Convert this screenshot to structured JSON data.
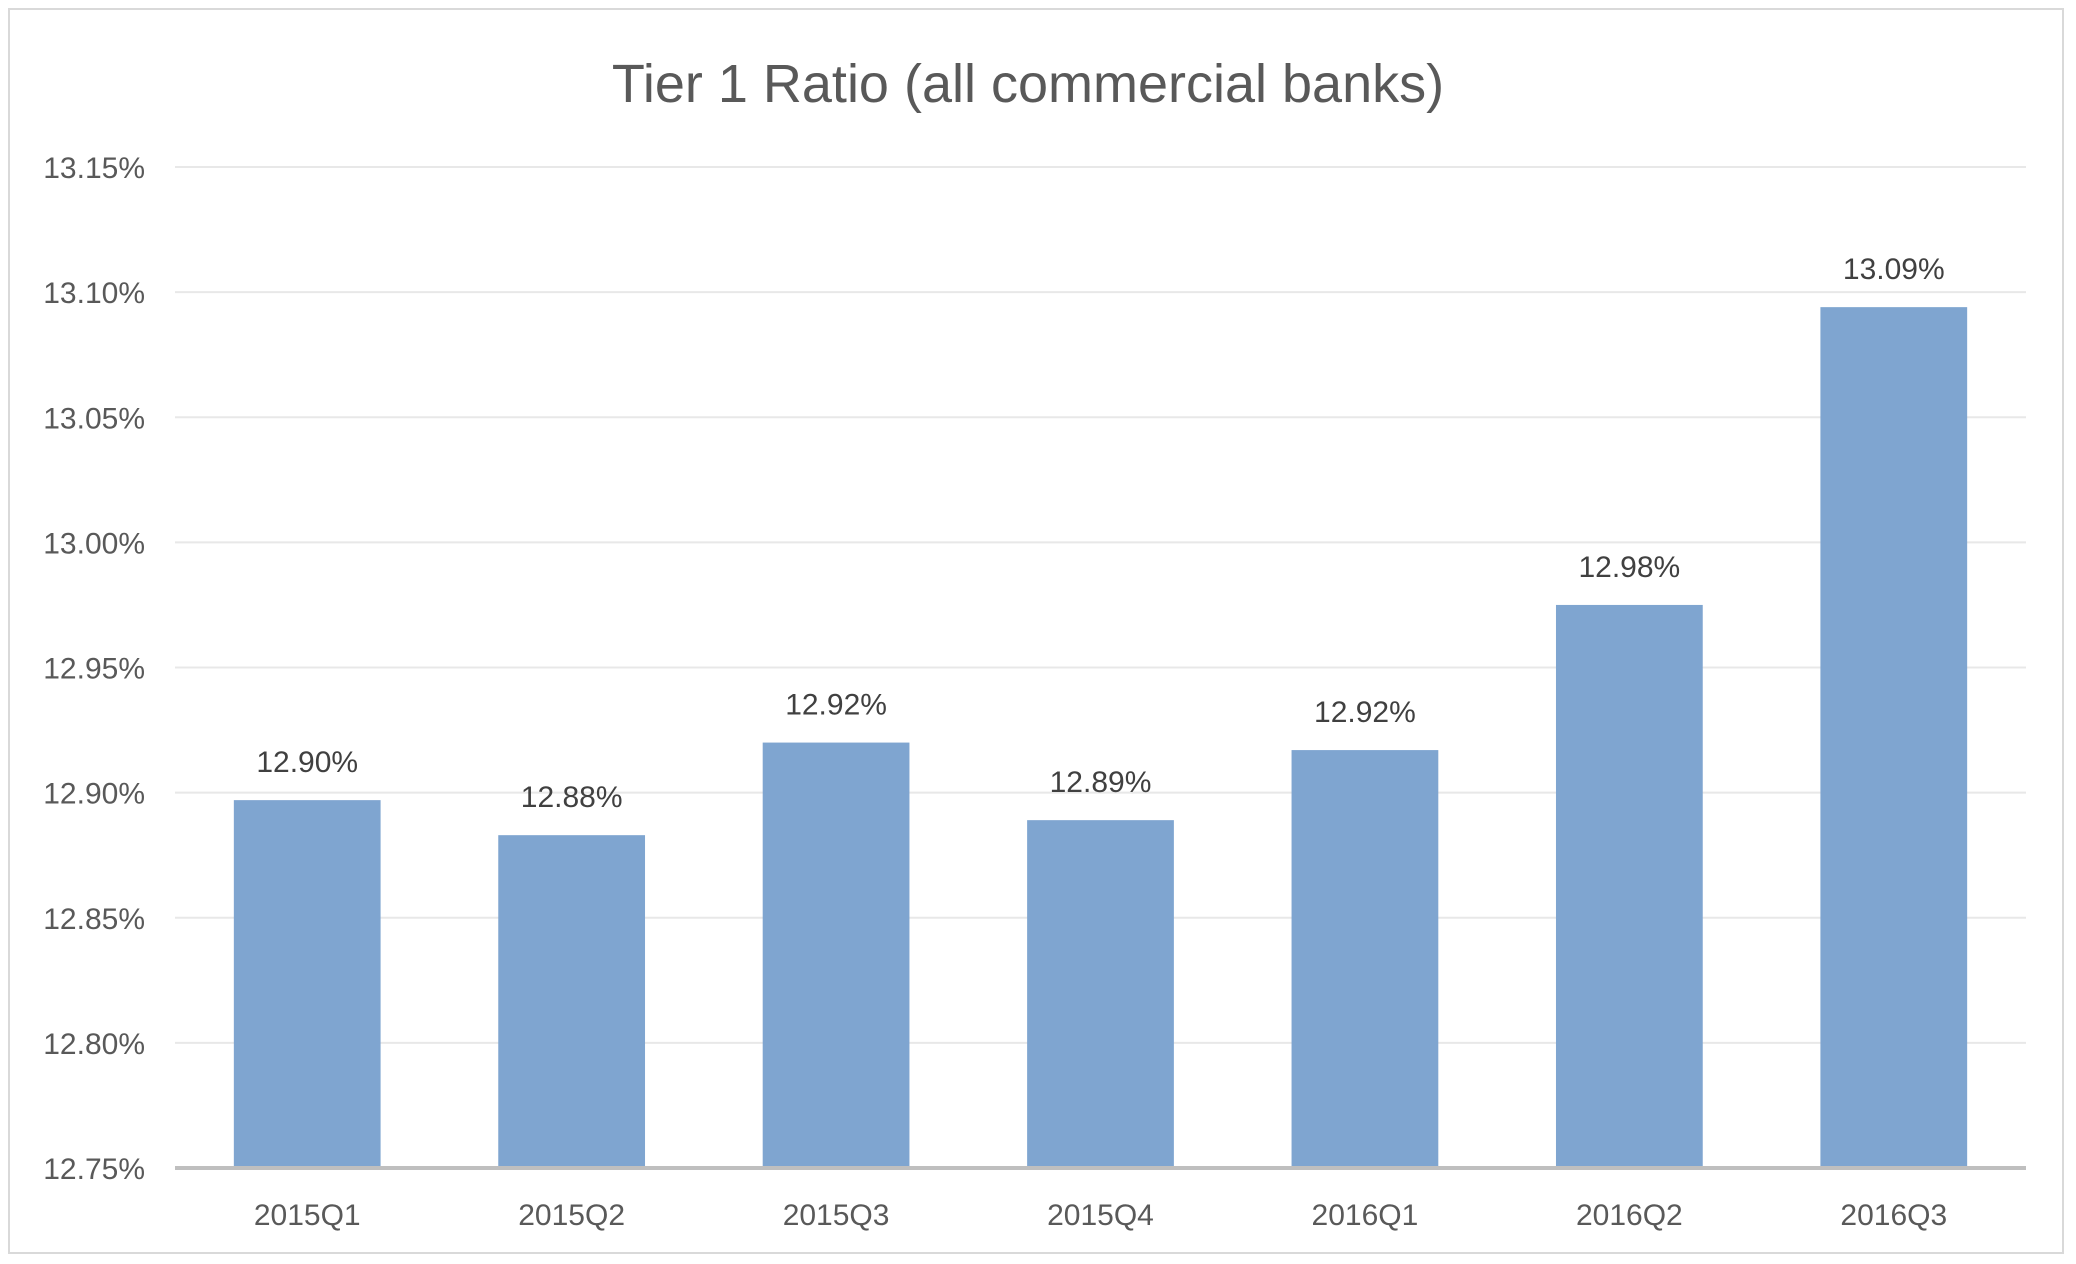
{
  "chart_data": {
    "type": "bar",
    "title": "Tier 1 Ratio (all commercial banks)",
    "xlabel": "",
    "ylabel": "",
    "categories": [
      "2015Q1",
      "2015Q2",
      "2015Q3",
      "2015Q4",
      "2016Q1",
      "2016Q2",
      "2016Q3"
    ],
    "values": [
      12.897,
      12.883,
      12.92,
      12.889,
      12.917,
      12.975,
      13.094
    ],
    "data_labels": [
      "12.90%",
      "12.88%",
      "12.92%",
      "12.89%",
      "12.92%",
      "12.98%",
      "13.09%"
    ],
    "ylim": [
      12.75,
      13.15
    ],
    "y_ticks": [
      12.75,
      12.8,
      12.85,
      12.9,
      12.95,
      13.0,
      13.05,
      13.1,
      13.15
    ],
    "y_tick_labels": [
      "12.75%",
      "12.80%",
      "12.85%",
      "12.90%",
      "12.95%",
      "13.00%",
      "13.05%",
      "13.10%",
      "13.15%"
    ],
    "grid": true,
    "legend": "none",
    "bar_color": "#7fa5d0",
    "gridline_color": "#e8e8e8",
    "axis_color": "#bfbfbf"
  }
}
